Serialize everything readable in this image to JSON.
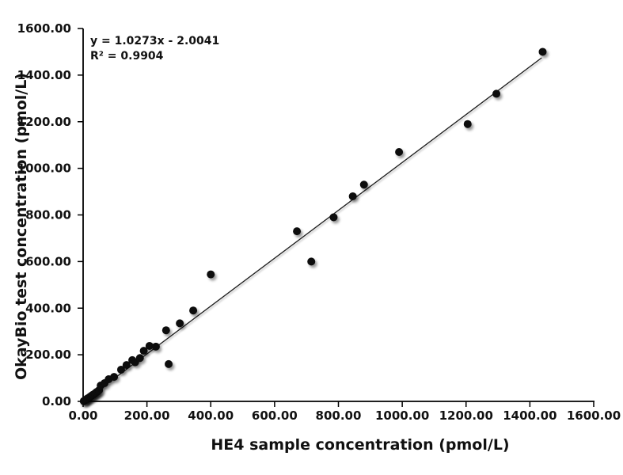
{
  "figure": {
    "annotation": {
      "equation": "y = 1.0273x - 2.0041",
      "r_squared": "R² = 0.9904"
    }
  },
  "chart_data": {
    "type": "scatter",
    "title": "",
    "xlabel": "HE4 sample concentration (pmol/L)",
    "ylabel": "OkayBio test concentration (pmol/L)",
    "xlim": [
      0,
      1600
    ],
    "ylim": [
      0,
      1600
    ],
    "grid": false,
    "legend": null,
    "tick_values": [
      0,
      200,
      400,
      600,
      800,
      1000,
      1200,
      1400,
      1600
    ],
    "x_tick_labels": [
      "0.00",
      "200.00",
      "400.00",
      "600.00",
      "800.00",
      "1000.00",
      "1200.00",
      "1400.00",
      "1600.00"
    ],
    "y_tick_labels": [
      "0.00",
      "200.00",
      "400.00",
      "600.00",
      "800.00",
      "1000.00",
      "1200.00",
      "1400.00",
      "1600.00"
    ],
    "points": [
      [
        2,
        1
      ],
      [
        4,
        3
      ],
      [
        7,
        6
      ],
      [
        10,
        9
      ],
      [
        13,
        12
      ],
      [
        17,
        15
      ],
      [
        21,
        19
      ],
      [
        25,
        23
      ],
      [
        29,
        27
      ],
      [
        33,
        30
      ],
      [
        37,
        34
      ],
      [
        41,
        39
      ],
      [
        46,
        43
      ],
      [
        50,
        48
      ],
      [
        55,
        68
      ],
      [
        67,
        78
      ],
      [
        80,
        95
      ],
      [
        97,
        105
      ],
      [
        119,
        136
      ],
      [
        136,
        156
      ],
      [
        154,
        177
      ],
      [
        163,
        168
      ],
      [
        178,
        186
      ],
      [
        190,
        217
      ],
      [
        208,
        238
      ],
      [
        228,
        235
      ],
      [
        260,
        305
      ],
      [
        268,
        160
      ],
      [
        303,
        335
      ],
      [
        345,
        390
      ],
      [
        400,
        545
      ],
      [
        670,
        730
      ],
      [
        715,
        600
      ],
      [
        785,
        790
      ],
      [
        845,
        880
      ],
      [
        880,
        930
      ],
      [
        990,
        1070
      ],
      [
        1205,
        1190
      ],
      [
        1295,
        1320
      ],
      [
        1440,
        1500
      ]
    ],
    "trendline": {
      "slope": 1.0273,
      "intercept": -2.0041,
      "x_start": 5,
      "x_end": 1437,
      "equation": "y = 1.0273x - 2.0041",
      "r_squared": "R² = 0.9904"
    },
    "colors": {
      "point": "#0d0d0d",
      "line": "#1a1a1a",
      "axis": "#000000",
      "text": "#111111",
      "background": "#ffffff"
    }
  }
}
